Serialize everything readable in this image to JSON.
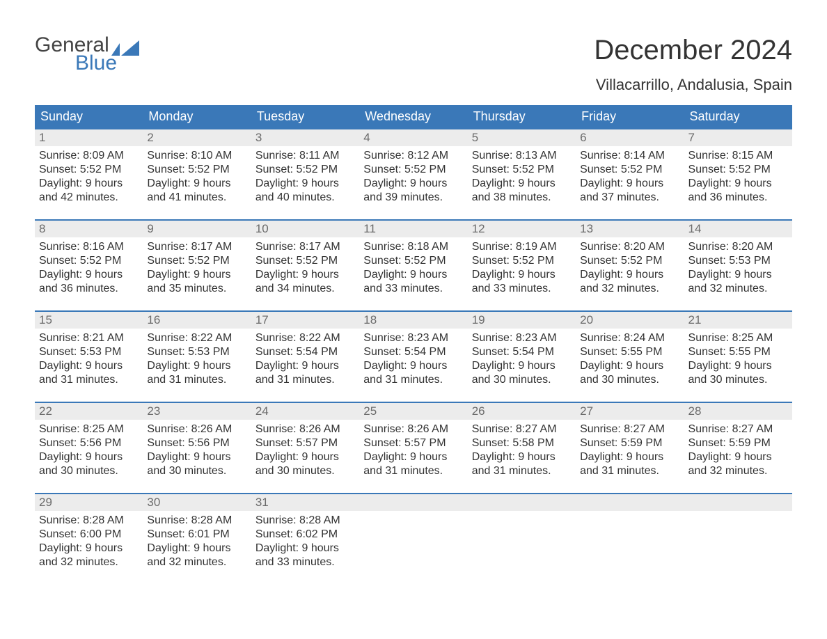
{
  "logo": {
    "line1": "General",
    "line2": "Blue"
  },
  "header": {
    "month_title": "December 2024",
    "location": "Villacarrillo, Andalusia, Spain"
  },
  "theme": {
    "header_bg": "#3a78b8",
    "header_text": "#ffffff",
    "daynum_bg": "#ececec",
    "daynum_text": "#6b6b6b",
    "body_text": "#333333",
    "logo_accent": "#3a78b8",
    "separator": "#3a78b8",
    "background": "#ffffff",
    "font_family": "Arial",
    "title_fontsize_pt": 30,
    "location_fontsize_pt": 17,
    "header_fontsize_pt": 14,
    "cell_fontsize_pt": 12
  },
  "daynames": [
    "Sunday",
    "Monday",
    "Tuesday",
    "Wednesday",
    "Thursday",
    "Friday",
    "Saturday"
  ],
  "labels": {
    "sunrise": "Sunrise:",
    "sunset": "Sunset:",
    "daylight_prefix": "Daylight:",
    "and": "and"
  },
  "weeks": [
    [
      {
        "day": "1",
        "sunrise": "8:09 AM",
        "sunset": "5:52 PM",
        "daylight1": "9 hours",
        "daylight2": "42 minutes."
      },
      {
        "day": "2",
        "sunrise": "8:10 AM",
        "sunset": "5:52 PM",
        "daylight1": "9 hours",
        "daylight2": "41 minutes."
      },
      {
        "day": "3",
        "sunrise": "8:11 AM",
        "sunset": "5:52 PM",
        "daylight1": "9 hours",
        "daylight2": "40 minutes."
      },
      {
        "day": "4",
        "sunrise": "8:12 AM",
        "sunset": "5:52 PM",
        "daylight1": "9 hours",
        "daylight2": "39 minutes."
      },
      {
        "day": "5",
        "sunrise": "8:13 AM",
        "sunset": "5:52 PM",
        "daylight1": "9 hours",
        "daylight2": "38 minutes."
      },
      {
        "day": "6",
        "sunrise": "8:14 AM",
        "sunset": "5:52 PM",
        "daylight1": "9 hours",
        "daylight2": "37 minutes."
      },
      {
        "day": "7",
        "sunrise": "8:15 AM",
        "sunset": "5:52 PM",
        "daylight1": "9 hours",
        "daylight2": "36 minutes."
      }
    ],
    [
      {
        "day": "8",
        "sunrise": "8:16 AM",
        "sunset": "5:52 PM",
        "daylight1": "9 hours",
        "daylight2": "36 minutes."
      },
      {
        "day": "9",
        "sunrise": "8:17 AM",
        "sunset": "5:52 PM",
        "daylight1": "9 hours",
        "daylight2": "35 minutes."
      },
      {
        "day": "10",
        "sunrise": "8:17 AM",
        "sunset": "5:52 PM",
        "daylight1": "9 hours",
        "daylight2": "34 minutes."
      },
      {
        "day": "11",
        "sunrise": "8:18 AM",
        "sunset": "5:52 PM",
        "daylight1": "9 hours",
        "daylight2": "33 minutes."
      },
      {
        "day": "12",
        "sunrise": "8:19 AM",
        "sunset": "5:52 PM",
        "daylight1": "9 hours",
        "daylight2": "33 minutes."
      },
      {
        "day": "13",
        "sunrise": "8:20 AM",
        "sunset": "5:52 PM",
        "daylight1": "9 hours",
        "daylight2": "32 minutes."
      },
      {
        "day": "14",
        "sunrise": "8:20 AM",
        "sunset": "5:53 PM",
        "daylight1": "9 hours",
        "daylight2": "32 minutes."
      }
    ],
    [
      {
        "day": "15",
        "sunrise": "8:21 AM",
        "sunset": "5:53 PM",
        "daylight1": "9 hours",
        "daylight2": "31 minutes."
      },
      {
        "day": "16",
        "sunrise": "8:22 AM",
        "sunset": "5:53 PM",
        "daylight1": "9 hours",
        "daylight2": "31 minutes."
      },
      {
        "day": "17",
        "sunrise": "8:22 AM",
        "sunset": "5:54 PM",
        "daylight1": "9 hours",
        "daylight2": "31 minutes."
      },
      {
        "day": "18",
        "sunrise": "8:23 AM",
        "sunset": "5:54 PM",
        "daylight1": "9 hours",
        "daylight2": "31 minutes."
      },
      {
        "day": "19",
        "sunrise": "8:23 AM",
        "sunset": "5:54 PM",
        "daylight1": "9 hours",
        "daylight2": "30 minutes."
      },
      {
        "day": "20",
        "sunrise": "8:24 AM",
        "sunset": "5:55 PM",
        "daylight1": "9 hours",
        "daylight2": "30 minutes."
      },
      {
        "day": "21",
        "sunrise": "8:25 AM",
        "sunset": "5:55 PM",
        "daylight1": "9 hours",
        "daylight2": "30 minutes."
      }
    ],
    [
      {
        "day": "22",
        "sunrise": "8:25 AM",
        "sunset": "5:56 PM",
        "daylight1": "9 hours",
        "daylight2": "30 minutes."
      },
      {
        "day": "23",
        "sunrise": "8:26 AM",
        "sunset": "5:56 PM",
        "daylight1": "9 hours",
        "daylight2": "30 minutes."
      },
      {
        "day": "24",
        "sunrise": "8:26 AM",
        "sunset": "5:57 PM",
        "daylight1": "9 hours",
        "daylight2": "30 minutes."
      },
      {
        "day": "25",
        "sunrise": "8:26 AM",
        "sunset": "5:57 PM",
        "daylight1": "9 hours",
        "daylight2": "31 minutes."
      },
      {
        "day": "26",
        "sunrise": "8:27 AM",
        "sunset": "5:58 PM",
        "daylight1": "9 hours",
        "daylight2": "31 minutes."
      },
      {
        "day": "27",
        "sunrise": "8:27 AM",
        "sunset": "5:59 PM",
        "daylight1": "9 hours",
        "daylight2": "31 minutes."
      },
      {
        "day": "28",
        "sunrise": "8:27 AM",
        "sunset": "5:59 PM",
        "daylight1": "9 hours",
        "daylight2": "32 minutes."
      }
    ],
    [
      {
        "day": "29",
        "sunrise": "8:28 AM",
        "sunset": "6:00 PM",
        "daylight1": "9 hours",
        "daylight2": "32 minutes."
      },
      {
        "day": "30",
        "sunrise": "8:28 AM",
        "sunset": "6:01 PM",
        "daylight1": "9 hours",
        "daylight2": "32 minutes."
      },
      {
        "day": "31",
        "sunrise": "8:28 AM",
        "sunset": "6:02 PM",
        "daylight1": "9 hours",
        "daylight2": "33 minutes."
      },
      {
        "empty": true
      },
      {
        "empty": true
      },
      {
        "empty": true
      },
      {
        "empty": true
      }
    ]
  ]
}
